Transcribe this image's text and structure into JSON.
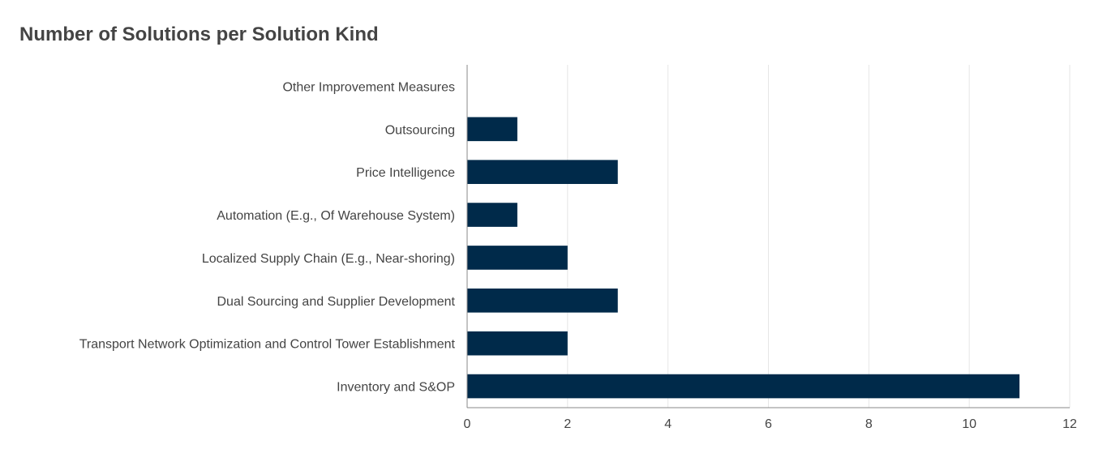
{
  "chart_data": {
    "type": "bar",
    "orientation": "horizontal",
    "title": "Number of Solutions per Solution Kind",
    "xlabel": "",
    "ylabel": "",
    "categories": [
      "Other Improvement Measures",
      "Outsourcing",
      "Price Intelligence",
      "Automation (E.g., Of Warehouse System)",
      "Localized Supply Chain (E.g., Near-shoring)",
      "Dual Sourcing and Supplier Development",
      "Transport Network Optimization and Control Tower Establishment",
      "Inventory and S&OP"
    ],
    "values": [
      0,
      1,
      3,
      1,
      2,
      3,
      2,
      11
    ],
    "xlim": [
      0,
      12
    ],
    "xticks": [
      0,
      2,
      4,
      6,
      8,
      10,
      12
    ],
    "grid": true,
    "bar_color": "#002a4a",
    "grid_color": "#e6e6e6",
    "axis_color": "#888888"
  }
}
